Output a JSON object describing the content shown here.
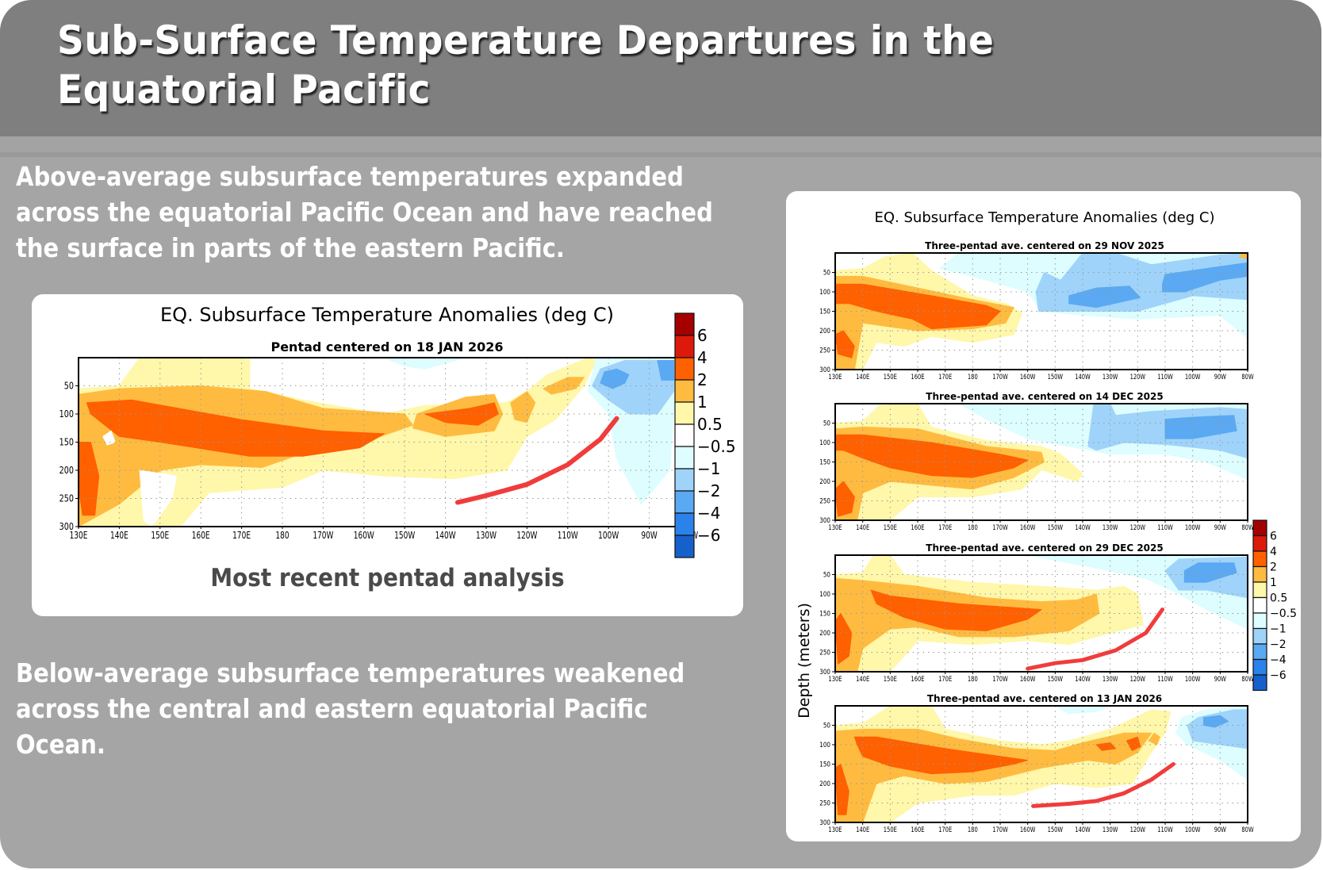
{
  "slide": {
    "title": "Sub-Surface Temperature Departures in the Equatorial Pacific",
    "paragraph_top": "Above-average subsurface temperatures expanded across the equatorial Pacific Ocean and have reached the surface in parts of the eastern Pacific.",
    "paragraph_bottom": "Below-average subsurface temperatures weakened across the central and eastern equatorial Pacific Ocean.",
    "left_caption": "Most recent pentad analysis"
  },
  "colors": {
    "header_bg": "#7f7f7f",
    "slide_bg": "#a5a5a5",
    "annotation_line": "#f03c3c"
  },
  "chart_data": [
    {
      "type": "heatmap",
      "title": "EQ. Subsurface Temperature Anomalies (deg C)",
      "subtitle": "Pentad centered on 18 JAN 2026",
      "xlabel": "",
      "ylabel": "",
      "x_ticks": [
        "130E",
        "140E",
        "150E",
        "160E",
        "170E",
        "180",
        "170W",
        "160W",
        "150W",
        "140W",
        "130W",
        "120W",
        "110W",
        "100W",
        "90W",
        "80W"
      ],
      "y_ticks": [
        "50",
        "100",
        "150",
        "200",
        "250",
        "300"
      ],
      "xlim": [
        130,
        280
      ],
      "ylim": [
        300,
        0
      ],
      "grid": true,
      "colorbar": {
        "levels": [
          "6",
          "4",
          "2",
          "1",
          "0.5",
          "-0.5",
          "-1",
          "-2",
          "-4",
          "-6"
        ],
        "colors": [
          "#a50000",
          "#dd1a0a",
          "#ff6000",
          "#ffbb40",
          "#fff7aa",
          "#ffffff",
          "#ddfdff",
          "#9fd3fa",
          "#5aa9f2",
          "#2a82ea",
          "#1660cc"
        ]
      },
      "annotation": {
        "type": "line",
        "description": "red arrow-like line tracing thermocline",
        "points": [
          [
            223,
            255
          ],
          [
            238,
            222
          ],
          [
            252,
            180
          ],
          [
            262,
            100
          ]
        ]
      },
      "features": [
        {
          "kind": "warm",
          "description": "+2 to +4 core from 140E to ~155W at 100-180 m"
        },
        {
          "kind": "warm",
          "description": "+2 to +4 patch near 130W-120W at ~100 m"
        },
        {
          "kind": "cold",
          "description": "-1 to -2 near 100W-85W at 30-100 m"
        }
      ]
    },
    {
      "type": "heatmap",
      "title": "EQ. Subsurface Temperature Anomalies (deg C)",
      "ylabel": "Depth (meters)",
      "x_ticks": [
        "130E",
        "140E",
        "150E",
        "160E",
        "170E",
        "180",
        "170W",
        "160W",
        "150W",
        "140W",
        "130W",
        "120W",
        "110W",
        "100W",
        "90W",
        "80W"
      ],
      "y_ticks": [
        "50",
        "100",
        "150",
        "200",
        "250",
        "300"
      ],
      "xlim": [
        130,
        280
      ],
      "ylim": [
        300,
        0
      ],
      "grid": true,
      "colorbar": {
        "levels": [
          "6",
          "4",
          "2",
          "1",
          "0.5",
          "-0.5",
          "-1",
          "-2",
          "-4",
          "-6"
        ],
        "colors": [
          "#a50000",
          "#dd1a0a",
          "#ff6000",
          "#ffbb40",
          "#fff7aa",
          "#ffffff",
          "#ddfdff",
          "#9fd3fa",
          "#5aa9f2",
          "#2a82ea",
          "#1660cc"
        ]
      },
      "panels": [
        {
          "subtitle": "Three-pentad ave. centered on 29 NOV 2025",
          "annotation": null
        },
        {
          "subtitle": "Three-pentad ave. centered on 14 DEC 2025",
          "annotation": null
        },
        {
          "subtitle": "Three-pentad ave. centered on 29 DEC 2025",
          "annotation": {
            "type": "line",
            "points": [
              [
                200,
                290
              ],
              [
                215,
                270
              ],
              [
                235,
                230
              ],
              [
                249,
                140
              ]
            ]
          }
        },
        {
          "subtitle": "Three-pentad ave. centered on 13 JAN 2026",
          "annotation": {
            "type": "line",
            "points": [
              [
                202,
                255
              ],
              [
                225,
                240
              ],
              [
                240,
                210
              ],
              [
                253,
                150
              ]
            ]
          }
        }
      ]
    }
  ]
}
